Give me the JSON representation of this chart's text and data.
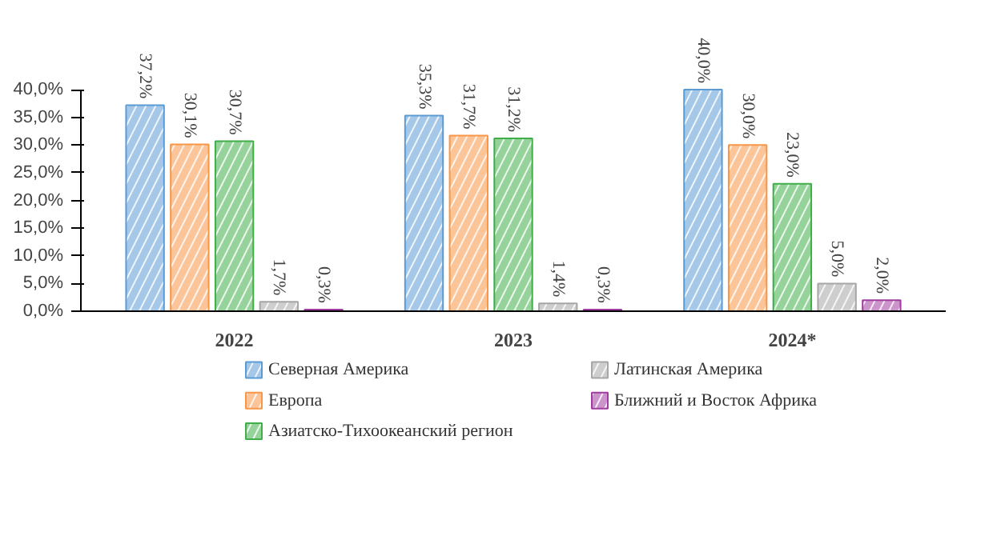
{
  "chart_data": {
    "type": "bar",
    "categories": [
      "2022",
      "2023",
      "2024*"
    ],
    "series": [
      {
        "name": "Северная Америка",
        "color": "#5b9bd5",
        "values": [
          37.2,
          35.3,
          40.0
        ],
        "value_labels": [
          "37,2%",
          "35,3%",
          "40,0%"
        ]
      },
      {
        "name": "Европа",
        "color": "#f79646",
        "values": [
          30.1,
          31.7,
          30.0
        ],
        "value_labels": [
          "30,1%",
          "31,7%",
          "30,0%"
        ]
      },
      {
        "name": "Азиатско-Тихоокеанский регион",
        "color": "#3fae49",
        "values": [
          30.7,
          31.2,
          23.0
        ],
        "value_labels": [
          "30,7%",
          "31,2%",
          "23,0%"
        ]
      },
      {
        "name": "Латинская Америка",
        "color": "#a6a6a6",
        "values": [
          1.7,
          1.4,
          5.0
        ],
        "value_labels": [
          "1,7%",
          "1,4%",
          "5,0%"
        ]
      },
      {
        "name": "Ближний и Восток Африка",
        "color": "#a03ca0",
        "values": [
          0.3,
          0.3,
          2.0
        ],
        "value_labels": [
          "0,3%",
          "0,3%",
          "2,0%"
        ]
      }
    ],
    "ylim": [
      0,
      40
    ],
    "yticks": [
      {
        "value": 0,
        "label": "0,0%"
      },
      {
        "value": 5,
        "label": "5,0%"
      },
      {
        "value": 10,
        "label": "10,0%"
      },
      {
        "value": 15,
        "label": "15,0%"
      },
      {
        "value": 20,
        "label": "20,0%"
      },
      {
        "value": 25,
        "label": "25,0%"
      },
      {
        "value": 30,
        "label": "30,0%"
      },
      {
        "value": 35,
        "label": "35,0%"
      },
      {
        "value": 40,
        "label": "40,0%"
      }
    ],
    "grid": false,
    "legend": "bottom"
  }
}
